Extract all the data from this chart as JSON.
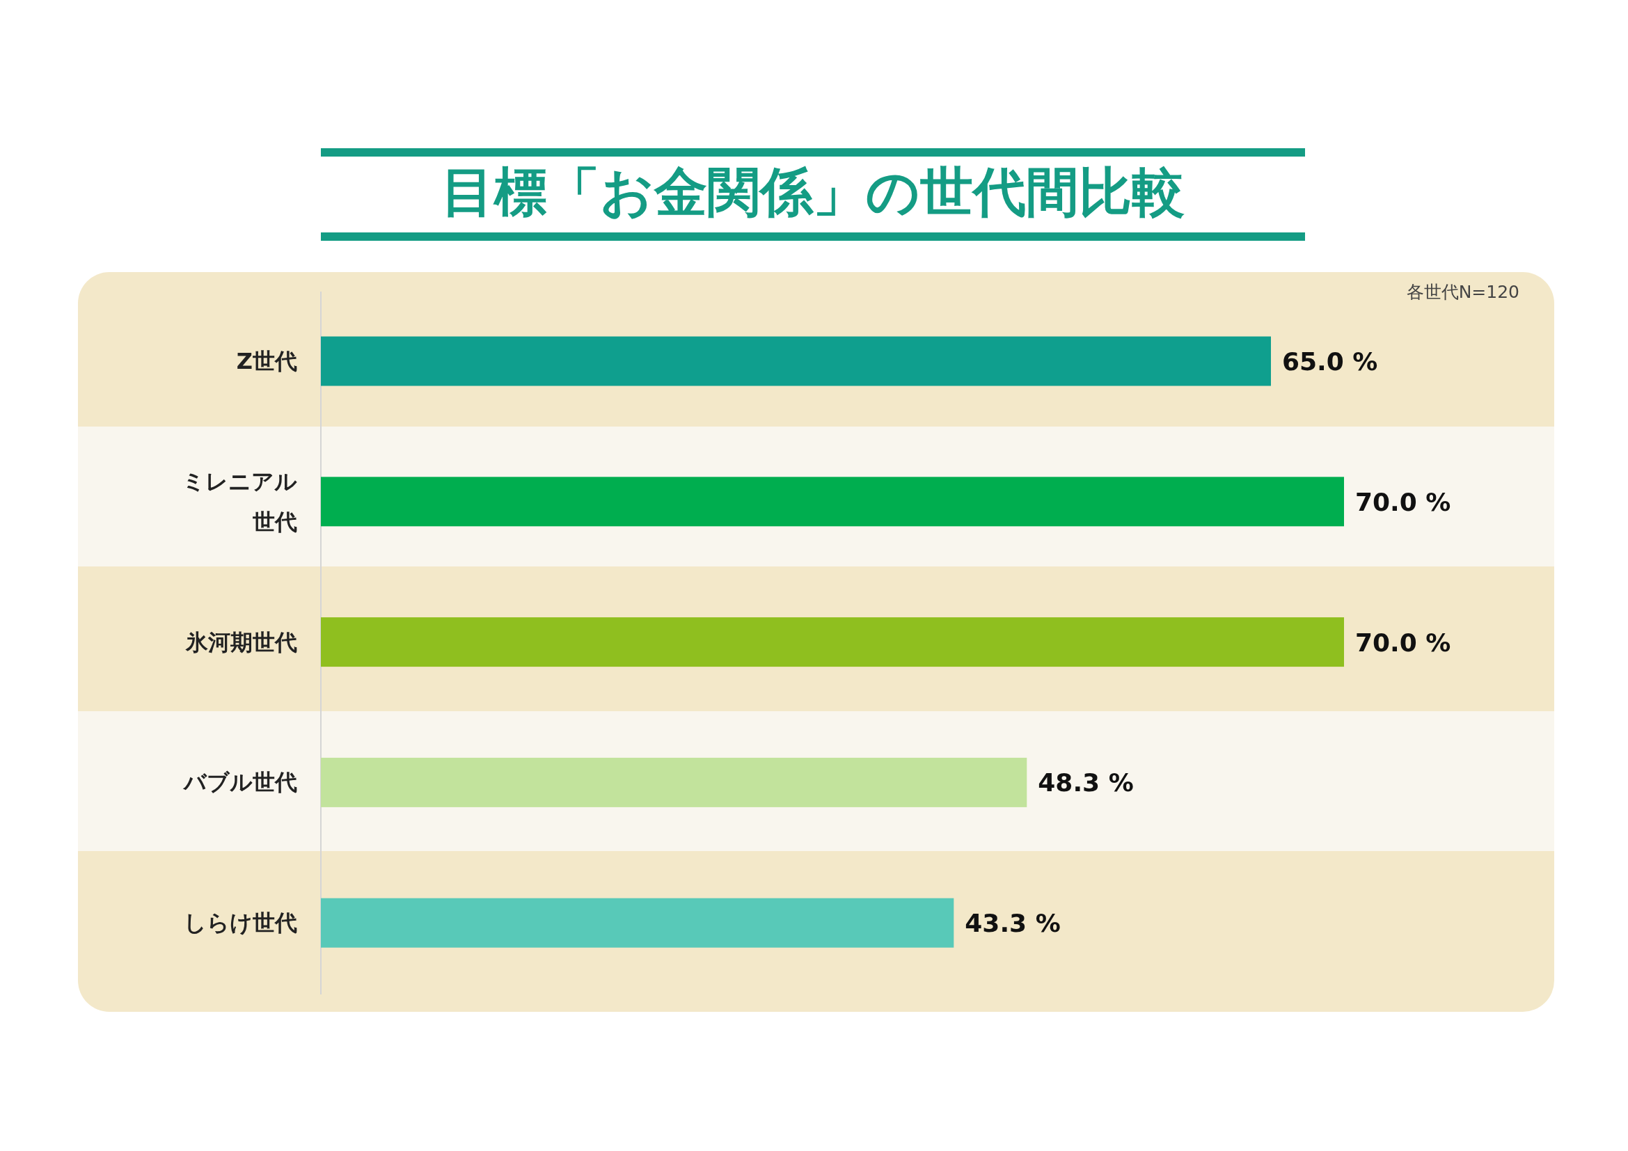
{
  "chart_data": {
    "type": "bar",
    "orientation": "horizontal",
    "title": "目標「お金関係」の世代間比較",
    "categories": [
      "Z世代",
      "ミレニアル世代",
      "氷河期世代",
      "バブル世代",
      "しらけ世代"
    ],
    "values": [
      65.0,
      70.0,
      70.0,
      48.3,
      43.3
    ],
    "colors": [
      "#0f9f8e",
      "#00ae4f",
      "#8fbf1f",
      "#c2e39c",
      "#58c9b8"
    ],
    "value_labels": [
      "65.0 %",
      "70.0 %",
      "70.0 %",
      "48.3 %",
      "43.3 %"
    ],
    "annotations": [
      "各世代N=120"
    ]
  }
}
